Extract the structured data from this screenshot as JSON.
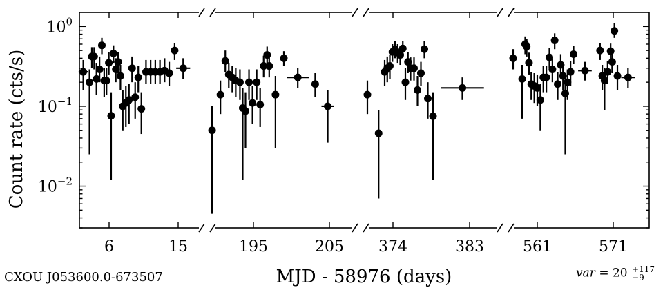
{
  "source_name": "CXOU J053600.0-673507",
  "variability": {
    "label": "var",
    "value": "20",
    "plus": "+117",
    "minus": "−9"
  },
  "chart_data": {
    "type": "scatter",
    "title": "",
    "xlabel": "MJD - 58976 (days)",
    "ylabel": "Count rate (cts/s)",
    "y_scale": "log",
    "ylim": [
      0.003,
      1.5
    ],
    "y_ticks": [
      {
        "value": 1,
        "base": "10",
        "exp": "0"
      },
      {
        "value": 0.1,
        "base": "10",
        "exp": "−1"
      },
      {
        "value": 0.01,
        "base": "10",
        "exp": "−2"
      }
    ],
    "broken_x_axis": true,
    "grid": false,
    "marker": "filled circle with x and y error bars",
    "color": "#000000",
    "segments": [
      {
        "xlim": [
          3.0,
          19.5
        ],
        "xticks": [
          "6",
          "15"
        ],
        "points": [
          {
            "x": 3.5,
            "xerr": 0.6,
            "y": 0.27,
            "ylo": 0.16,
            "yhi": 0.38
          },
          {
            "x": 4.3,
            "xerr": 0.3,
            "y": 0.2,
            "ylo": 0.025,
            "yhi": 0.29
          },
          {
            "x": 4.6,
            "xerr": 0.3,
            "y": 0.42,
            "ylo": 0.3,
            "yhi": 0.55
          },
          {
            "x": 4.9,
            "xerr": 0.3,
            "y": 0.42,
            "ylo": 0.29,
            "yhi": 0.55
          },
          {
            "x": 5.2,
            "xerr": 0.3,
            "y": 0.22,
            "ylo": 0.14,
            "yhi": 0.35
          },
          {
            "x": 5.6,
            "xerr": 0.3,
            "y": 0.29,
            "ylo": 0.2,
            "yhi": 0.42
          },
          {
            "x": 5.9,
            "xerr": 0.25,
            "y": 0.58,
            "ylo": 0.45,
            "yhi": 0.72
          },
          {
            "x": 6.2,
            "xerr": 0.25,
            "y": 0.21,
            "ylo": 0.13,
            "yhi": 0.3
          },
          {
            "x": 6.5,
            "xerr": 0.25,
            "y": 0.21,
            "ylo": 0.14,
            "yhi": 0.3
          },
          {
            "x": 6.8,
            "xerr": 0.25,
            "y": 0.35,
            "ylo": 0.25,
            "yhi": 0.48
          },
          {
            "x": 7.1,
            "xerr": 0.25,
            "y": 0.076,
            "ylo": 0.012,
            "yhi": 0.15
          },
          {
            "x": 7.4,
            "xerr": 0.25,
            "y": 0.46,
            "ylo": 0.35,
            "yhi": 0.58
          },
          {
            "x": 7.7,
            "xerr": 0.25,
            "y": 0.29,
            "ylo": 0.2,
            "yhi": 0.4
          },
          {
            "x": 8.0,
            "xerr": 0.25,
            "y": 0.36,
            "ylo": 0.26,
            "yhi": 0.48
          },
          {
            "x": 8.3,
            "xerr": 0.25,
            "y": 0.24,
            "ylo": 0.16,
            "yhi": 0.33
          },
          {
            "x": 8.6,
            "xerr": 0.25,
            "y": 0.1,
            "ylo": 0.05,
            "yhi": 0.16
          },
          {
            "x": 9.0,
            "xerr": 0.25,
            "y": 0.11,
            "ylo": 0.055,
            "yhi": 0.18
          },
          {
            "x": 9.4,
            "xerr": 0.25,
            "y": 0.12,
            "ylo": 0.06,
            "yhi": 0.19
          },
          {
            "x": 9.8,
            "xerr": 0.25,
            "y": 0.3,
            "ylo": 0.2,
            "yhi": 0.42
          },
          {
            "x": 10.2,
            "xerr": 0.25,
            "y": 0.13,
            "ylo": 0.07,
            "yhi": 0.2
          },
          {
            "x": 10.6,
            "xerr": 0.25,
            "y": 0.23,
            "ylo": 0.15,
            "yhi": 0.32
          },
          {
            "x": 11.0,
            "xerr": 0.25,
            "y": 0.093,
            "ylo": 0.045,
            "yhi": 0.15
          },
          {
            "x": 11.6,
            "xerr": 0.3,
            "y": 0.27,
            "ylo": 0.19,
            "yhi": 0.38
          },
          {
            "x": 12.2,
            "xerr": 0.3,
            "y": 0.27,
            "ylo": 0.19,
            "yhi": 0.38
          },
          {
            "x": 12.8,
            "xerr": 0.3,
            "y": 0.27,
            "ylo": 0.19,
            "yhi": 0.38
          },
          {
            "x": 13.4,
            "xerr": 0.3,
            "y": 0.27,
            "ylo": 0.19,
            "yhi": 0.38
          },
          {
            "x": 14.0,
            "xerr": 0.3,
            "y": 0.28,
            "ylo": 0.2,
            "yhi": 0.4
          },
          {
            "x": 14.6,
            "xerr": 0.3,
            "y": 0.26,
            "ylo": 0.18,
            "yhi": 0.36
          },
          {
            "x": 15.3,
            "xerr": 0.4,
            "y": 0.5,
            "ylo": 0.38,
            "yhi": 0.62
          },
          {
            "x": 16.4,
            "xerr": 0.9,
            "y": 0.3,
            "ylo": 0.22,
            "yhi": 0.4
          }
        ]
      },
      {
        "xlim": [
          187.5,
          209.5
        ],
        "xticks": [
          "195",
          "205"
        ],
        "points": [
          {
            "x": 188.2,
            "xerr": 0.3,
            "y": 0.05,
            "ylo": 0.0045,
            "yhi": 0.1
          },
          {
            "x": 189.4,
            "xerr": 0.3,
            "y": 0.14,
            "ylo": 0.08,
            "yhi": 0.21
          },
          {
            "x": 190.1,
            "xerr": 0.3,
            "y": 0.37,
            "ylo": 0.27,
            "yhi": 0.5
          },
          {
            "x": 190.6,
            "xerr": 0.3,
            "y": 0.25,
            "ylo": 0.17,
            "yhi": 0.35
          },
          {
            "x": 191.1,
            "xerr": 0.3,
            "y": 0.23,
            "ylo": 0.15,
            "yhi": 0.32
          },
          {
            "x": 191.6,
            "xerr": 0.3,
            "y": 0.21,
            "ylo": 0.13,
            "yhi": 0.3
          },
          {
            "x": 192.2,
            "xerr": 0.3,
            "y": 0.2,
            "ylo": 0.12,
            "yhi": 0.29
          },
          {
            "x": 192.6,
            "xerr": 0.3,
            "y": 0.095,
            "ylo": 0.012,
            "yhi": 0.17
          },
          {
            "x": 193.0,
            "xerr": 0.3,
            "y": 0.087,
            "ylo": 0.03,
            "yhi": 0.15
          },
          {
            "x": 193.5,
            "xerr": 0.3,
            "y": 0.2,
            "ylo": 0.12,
            "yhi": 0.29
          },
          {
            "x": 194.0,
            "xerr": 0.3,
            "y": 0.11,
            "ylo": 0.06,
            "yhi": 0.18
          },
          {
            "x": 194.6,
            "xerr": 0.3,
            "y": 0.2,
            "ylo": 0.12,
            "yhi": 0.29
          },
          {
            "x": 195.1,
            "xerr": 0.3,
            "y": 0.105,
            "ylo": 0.055,
            "yhi": 0.17
          },
          {
            "x": 195.6,
            "xerr": 0.3,
            "y": 0.32,
            "ylo": 0.23,
            "yhi": 0.43
          },
          {
            "x": 196.1,
            "xerr": 0.3,
            "y": 0.44,
            "ylo": 0.33,
            "yhi": 0.56
          },
          {
            "x": 196.4,
            "xerr": 0.3,
            "y": 0.32,
            "ylo": 0.23,
            "yhi": 0.43
          },
          {
            "x": 197.3,
            "xerr": 0.3,
            "y": 0.14,
            "ylo": 0.03,
            "yhi": 0.24
          },
          {
            "x": 198.5,
            "xerr": 0.4,
            "y": 0.4,
            "ylo": 0.32,
            "yhi": 0.49
          },
          {
            "x": 200.5,
            "xerr": 1.6,
            "y": 0.23,
            "ylo": 0.17,
            "yhi": 0.3
          },
          {
            "x": 203.0,
            "xerr": 0.4,
            "y": 0.19,
            "ylo": 0.13,
            "yhi": 0.26
          },
          {
            "x": 204.8,
            "xerr": 0.9,
            "y": 0.1,
            "ylo": 0.035,
            "yhi": 0.16
          }
        ]
      },
      {
        "xlim": [
          369.2,
          386.0
        ],
        "xticks": [
          "374",
          "383"
        ],
        "points": [
          {
            "x": 370.0,
            "xerr": 0.4,
            "y": 0.14,
            "ylo": 0.08,
            "yhi": 0.21
          },
          {
            "x": 371.3,
            "xerr": 0.3,
            "y": 0.046,
            "ylo": 0.007,
            "yhi": 0.09
          },
          {
            "x": 372.0,
            "xerr": 0.3,
            "y": 0.27,
            "ylo": 0.18,
            "yhi": 0.38
          },
          {
            "x": 372.3,
            "xerr": 0.3,
            "y": 0.3,
            "ylo": 0.2,
            "yhi": 0.42
          },
          {
            "x": 372.6,
            "xerr": 0.3,
            "y": 0.32,
            "ylo": 0.22,
            "yhi": 0.44
          },
          {
            "x": 372.9,
            "xerr": 0.3,
            "y": 0.48,
            "ylo": 0.36,
            "yhi": 0.6
          },
          {
            "x": 373.2,
            "xerr": 0.3,
            "y": 0.52,
            "ylo": 0.4,
            "yhi": 0.65
          },
          {
            "x": 373.5,
            "xerr": 0.3,
            "y": 0.47,
            "ylo": 0.35,
            "yhi": 0.6
          },
          {
            "x": 373.8,
            "xerr": 0.3,
            "y": 0.44,
            "ylo": 0.33,
            "yhi": 0.57
          },
          {
            "x": 374.1,
            "xerr": 0.3,
            "y": 0.53,
            "ylo": 0.41,
            "yhi": 0.66
          },
          {
            "x": 374.4,
            "xerr": 0.3,
            "y": 0.2,
            "ylo": 0.12,
            "yhi": 0.3
          },
          {
            "x": 374.7,
            "xerr": 0.3,
            "y": 0.36,
            "ylo": 0.26,
            "yhi": 0.48
          },
          {
            "x": 375.0,
            "xerr": 0.3,
            "y": 0.3,
            "ylo": 0.21,
            "yhi": 0.41
          },
          {
            "x": 375.4,
            "xerr": 0.3,
            "y": 0.3,
            "ylo": 0.21,
            "yhi": 0.41
          },
          {
            "x": 375.8,
            "xerr": 0.3,
            "y": 0.16,
            "ylo": 0.1,
            "yhi": 0.24
          },
          {
            "x": 376.2,
            "xerr": 0.3,
            "y": 0.26,
            "ylo": 0.18,
            "yhi": 0.36
          },
          {
            "x": 376.6,
            "xerr": 0.3,
            "y": 0.52,
            "ylo": 0.4,
            "yhi": 0.65
          },
          {
            "x": 377.0,
            "xerr": 0.3,
            "y": 0.125,
            "ylo": 0.07,
            "yhi": 0.2
          },
          {
            "x": 377.6,
            "xerr": 0.3,
            "y": 0.075,
            "ylo": 0.012,
            "yhi": 0.15
          },
          {
            "x": 381.0,
            "xerr": 2.5,
            "y": 0.17,
            "ylo": 0.12,
            "yhi": 0.23
          }
        ]
      },
      {
        "xlim": [
          556.0,
          575.0
        ],
        "xticks": [
          "561",
          "571"
        ],
        "points": [
          {
            "x": 557.0,
            "xerr": 0.3,
            "y": 0.4,
            "ylo": 0.29,
            "yhi": 0.52
          },
          {
            "x": 558.2,
            "xerr": 0.3,
            "y": 0.22,
            "ylo": 0.07,
            "yhi": 0.33
          },
          {
            "x": 558.6,
            "xerr": 0.25,
            "y": 0.6,
            "ylo": 0.45,
            "yhi": 0.75
          },
          {
            "x": 558.8,
            "xerr": 0.25,
            "y": 0.56,
            "ylo": 0.42,
            "yhi": 0.7
          },
          {
            "x": 559.1,
            "xerr": 0.25,
            "y": 0.35,
            "ylo": 0.25,
            "yhi": 0.47
          },
          {
            "x": 559.4,
            "xerr": 0.25,
            "y": 0.19,
            "ylo": 0.12,
            "yhi": 0.27
          },
          {
            "x": 559.8,
            "xerr": 0.25,
            "y": 0.18,
            "ylo": 0.11,
            "yhi": 0.26
          },
          {
            "x": 560.2,
            "xerr": 0.25,
            "y": 0.17,
            "ylo": 0.1,
            "yhi": 0.25
          },
          {
            "x": 560.6,
            "xerr": 0.25,
            "y": 0.12,
            "ylo": 0.05,
            "yhi": 0.19
          },
          {
            "x": 561.0,
            "xerr": 0.25,
            "y": 0.23,
            "ylo": 0.15,
            "yhi": 0.32
          },
          {
            "x": 561.4,
            "xerr": 0.25,
            "y": 0.23,
            "ylo": 0.15,
            "yhi": 0.32
          },
          {
            "x": 561.8,
            "xerr": 0.25,
            "y": 0.41,
            "ylo": 0.3,
            "yhi": 0.54
          },
          {
            "x": 562.2,
            "xerr": 0.25,
            "y": 0.29,
            "ylo": 0.2,
            "yhi": 0.4
          },
          {
            "x": 562.5,
            "xerr": 0.25,
            "y": 0.67,
            "ylo": 0.52,
            "yhi": 0.82
          },
          {
            "x": 562.9,
            "xerr": 0.25,
            "y": 0.19,
            "ylo": 0.12,
            "yhi": 0.27
          },
          {
            "x": 563.3,
            "xerr": 0.25,
            "y": 0.33,
            "ylo": 0.23,
            "yhi": 0.45
          },
          {
            "x": 563.6,
            "xerr": 0.25,
            "y": 0.24,
            "ylo": 0.16,
            "yhi": 0.33
          },
          {
            "x": 563.9,
            "xerr": 0.25,
            "y": 0.145,
            "ylo": 0.025,
            "yhi": 0.22
          },
          {
            "x": 564.2,
            "xerr": 0.25,
            "y": 0.2,
            "ylo": 0.12,
            "yhi": 0.29
          },
          {
            "x": 564.6,
            "xerr": 0.25,
            "y": 0.27,
            "ylo": 0.18,
            "yhi": 0.37
          },
          {
            "x": 565.0,
            "xerr": 0.25,
            "y": 0.45,
            "ylo": 0.34,
            "yhi": 0.57
          },
          {
            "x": 566.5,
            "xerr": 0.9,
            "y": 0.28,
            "ylo": 0.21,
            "yhi": 0.36
          },
          {
            "x": 568.5,
            "xerr": 0.3,
            "y": 0.5,
            "ylo": 0.38,
            "yhi": 0.62
          },
          {
            "x": 568.8,
            "xerr": 0.3,
            "y": 0.24,
            "ylo": 0.16,
            "yhi": 0.33
          },
          {
            "x": 569.1,
            "xerr": 0.3,
            "y": 0.21,
            "ylo": 0.09,
            "yhi": 0.3
          },
          {
            "x": 569.5,
            "xerr": 0.3,
            "y": 0.27,
            "ylo": 0.19,
            "yhi": 0.37
          },
          {
            "x": 569.9,
            "xerr": 0.25,
            "y": 0.49,
            "ylo": 0.37,
            "yhi": 0.61
          },
          {
            "x": 570.1,
            "xerr": 0.25,
            "y": 0.36,
            "ylo": 0.26,
            "yhi": 0.48
          },
          {
            "x": 570.4,
            "xerr": 0.25,
            "y": 0.88,
            "ylo": 0.72,
            "yhi": 1.1
          },
          {
            "x": 570.8,
            "xerr": 0.3,
            "y": 0.24,
            "ylo": 0.16,
            "yhi": 0.33
          },
          {
            "x": 572.2,
            "xerr": 0.9,
            "y": 0.23,
            "ylo": 0.17,
            "yhi": 0.3
          }
        ]
      }
    ]
  }
}
